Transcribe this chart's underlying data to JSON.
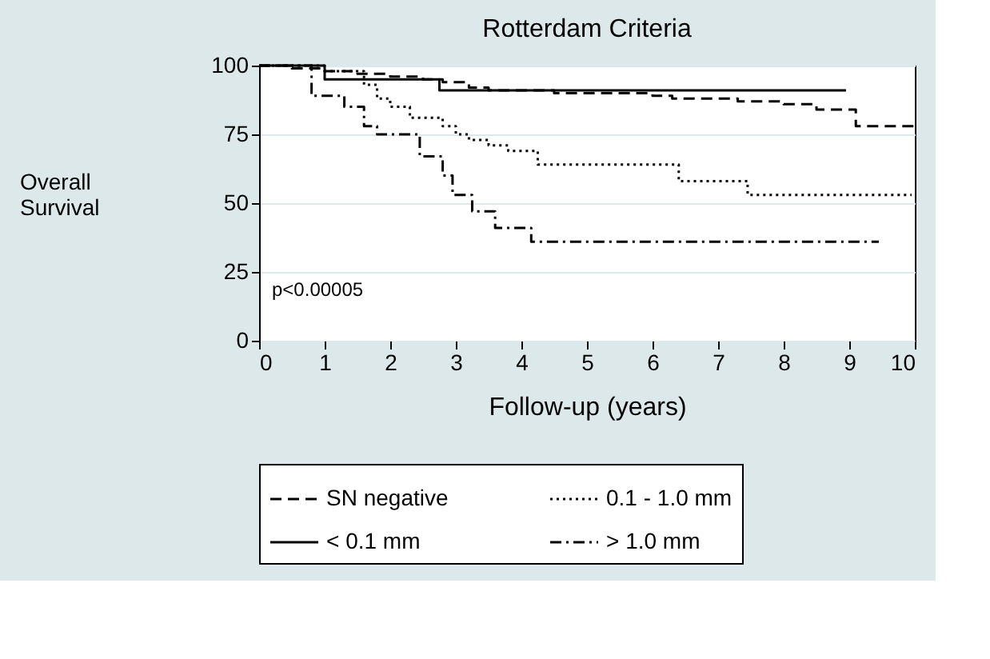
{
  "chart_data": {
    "type": "step",
    "title": "Rotterdam Criteria",
    "xlabel": "Follow-up (years)",
    "ylabel": "Overall Survival",
    "annotations": [
      "p<0.00005"
    ],
    "xlim": [
      0,
      10
    ],
    "xticks": [
      0,
      1,
      2,
      3,
      4,
      5,
      6,
      7,
      8,
      9,
      10
    ],
    "ylim": [
      0,
      100
    ],
    "yticks": [
      0,
      25,
      50,
      75,
      100
    ],
    "grid": "y",
    "legend": "bottom",
    "marker": "none",
    "series": [
      {
        "name": "SN negative",
        "color": "#000000",
        "line_style": "dashed",
        "x": [
          0,
          0.5,
          1.0,
          1.5,
          2.0,
          2.5,
          2.8,
          3.2,
          3.5,
          4.5,
          6.0,
          6.3,
          7.3,
          8.0,
          8.5,
          9.1,
          10
        ],
        "values": [
          100,
          99,
          98,
          97,
          96,
          95,
          94,
          92,
          91,
          90,
          89,
          88,
          87,
          86,
          84,
          78,
          78
        ]
      },
      {
        "name": "0.1 - 1.0 mm",
        "color": "#000000",
        "line_style": "dotted",
        "x": [
          0,
          1.0,
          1.6,
          1.8,
          2.0,
          2.3,
          2.8,
          3.0,
          3.2,
          3.5,
          3.8,
          4.25,
          6.4,
          7.45,
          9.95
        ],
        "values": [
          100,
          98,
          93,
          88,
          85,
          81,
          78,
          75,
          73,
          71,
          69,
          64,
          58,
          53,
          53
        ]
      },
      {
        "name": "< 0.1 mm",
        "color": "#000000",
        "line_style": "solid",
        "x": [
          0,
          1.0,
          2.75,
          8.95
        ],
        "values": [
          100,
          95,
          91,
          91
        ]
      },
      {
        "name": "> 1.0 mm",
        "color": "#000000",
        "line_style": "dashdot",
        "x": [
          0,
          0.8,
          1.3,
          1.6,
          1.8,
          2.45,
          2.8,
          2.95,
          3.25,
          3.6,
          4.15,
          9.45
        ],
        "values": [
          100,
          89,
          85,
          78,
          75,
          67,
          60,
          53,
          47,
          41,
          36,
          36
        ]
      }
    ]
  }
}
